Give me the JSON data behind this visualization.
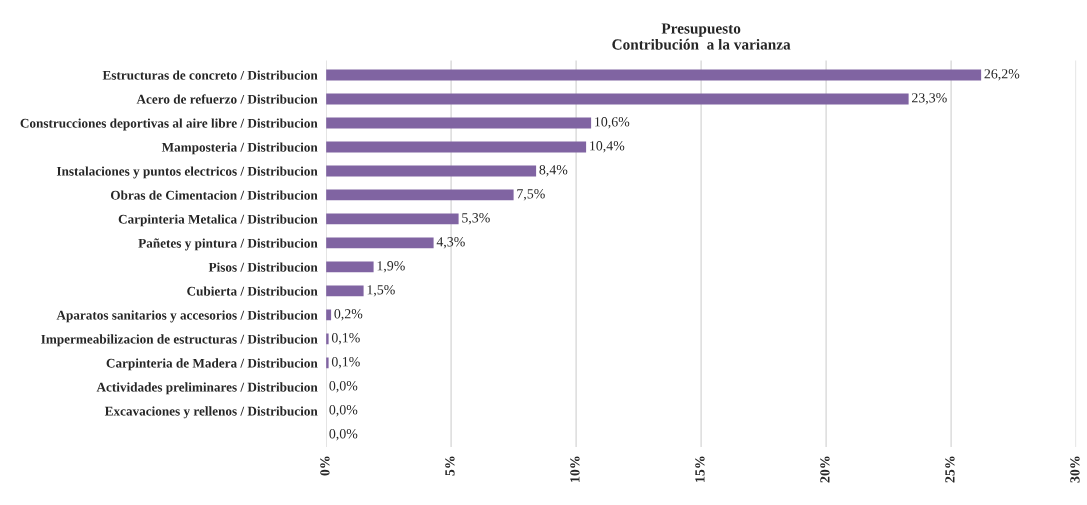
{
  "chart_data": {
    "type": "bar",
    "orientation": "horizontal",
    "title": "Presupuesto\nContribución  a la varianza",
    "categories": [
      "Estructuras de concreto / Distribucion",
      "Acero de refuerzo / Distribucion",
      "Construcciones deportivas al aire libre / Distribucion",
      "Mamposteria / Distribucion",
      "Instalaciones y puntos electricos / Distribucion",
      "Obras de Cimentacion / Distribucion",
      "Carpinteria Metalica / Distribucion",
      "Pañetes y pintura / Distribucion",
      "Pisos / Distribucion",
      "Cubierta / Distribucion",
      "Aparatos sanitarios y accesorios / Distribucion",
      "Impermeabilizacion de estructuras / Distribucion",
      "Carpinteria de Madera / Distribucion",
      "Actividades preliminares / Distribucion",
      "Excavaciones y rellenos / Distribucion",
      null
    ],
    "values": [
      26.2,
      23.3,
      10.6,
      10.4,
      8.4,
      7.5,
      5.3,
      4.3,
      1.9,
      1.5,
      0.2,
      0.1,
      0.1,
      0.0,
      0.0,
      0.0
    ],
    "value_labels": [
      "26,2%",
      "23,3%",
      "10,6%",
      "10,4%",
      "8,4%",
      "7,5%",
      "5,3%",
      "4,3%",
      "1,9%",
      "1,5%",
      "0,2%",
      "0,1%",
      "0,1%",
      "0,0%",
      "0,0%",
      "0,0%"
    ],
    "color": "#8064a2",
    "xlim": [
      0,
      30
    ],
    "xticks": [
      {
        "value": 0,
        "label": "0%"
      },
      {
        "value": 5,
        "label": "5%"
      },
      {
        "value": 10,
        "label": "10%"
      },
      {
        "value": 15,
        "label": "15%"
      },
      {
        "value": 20,
        "label": "20%"
      },
      {
        "value": 25,
        "label": "25%"
      },
      {
        "value": 30,
        "label": "30%"
      }
    ],
    "grid": "x",
    "legend": false
  }
}
